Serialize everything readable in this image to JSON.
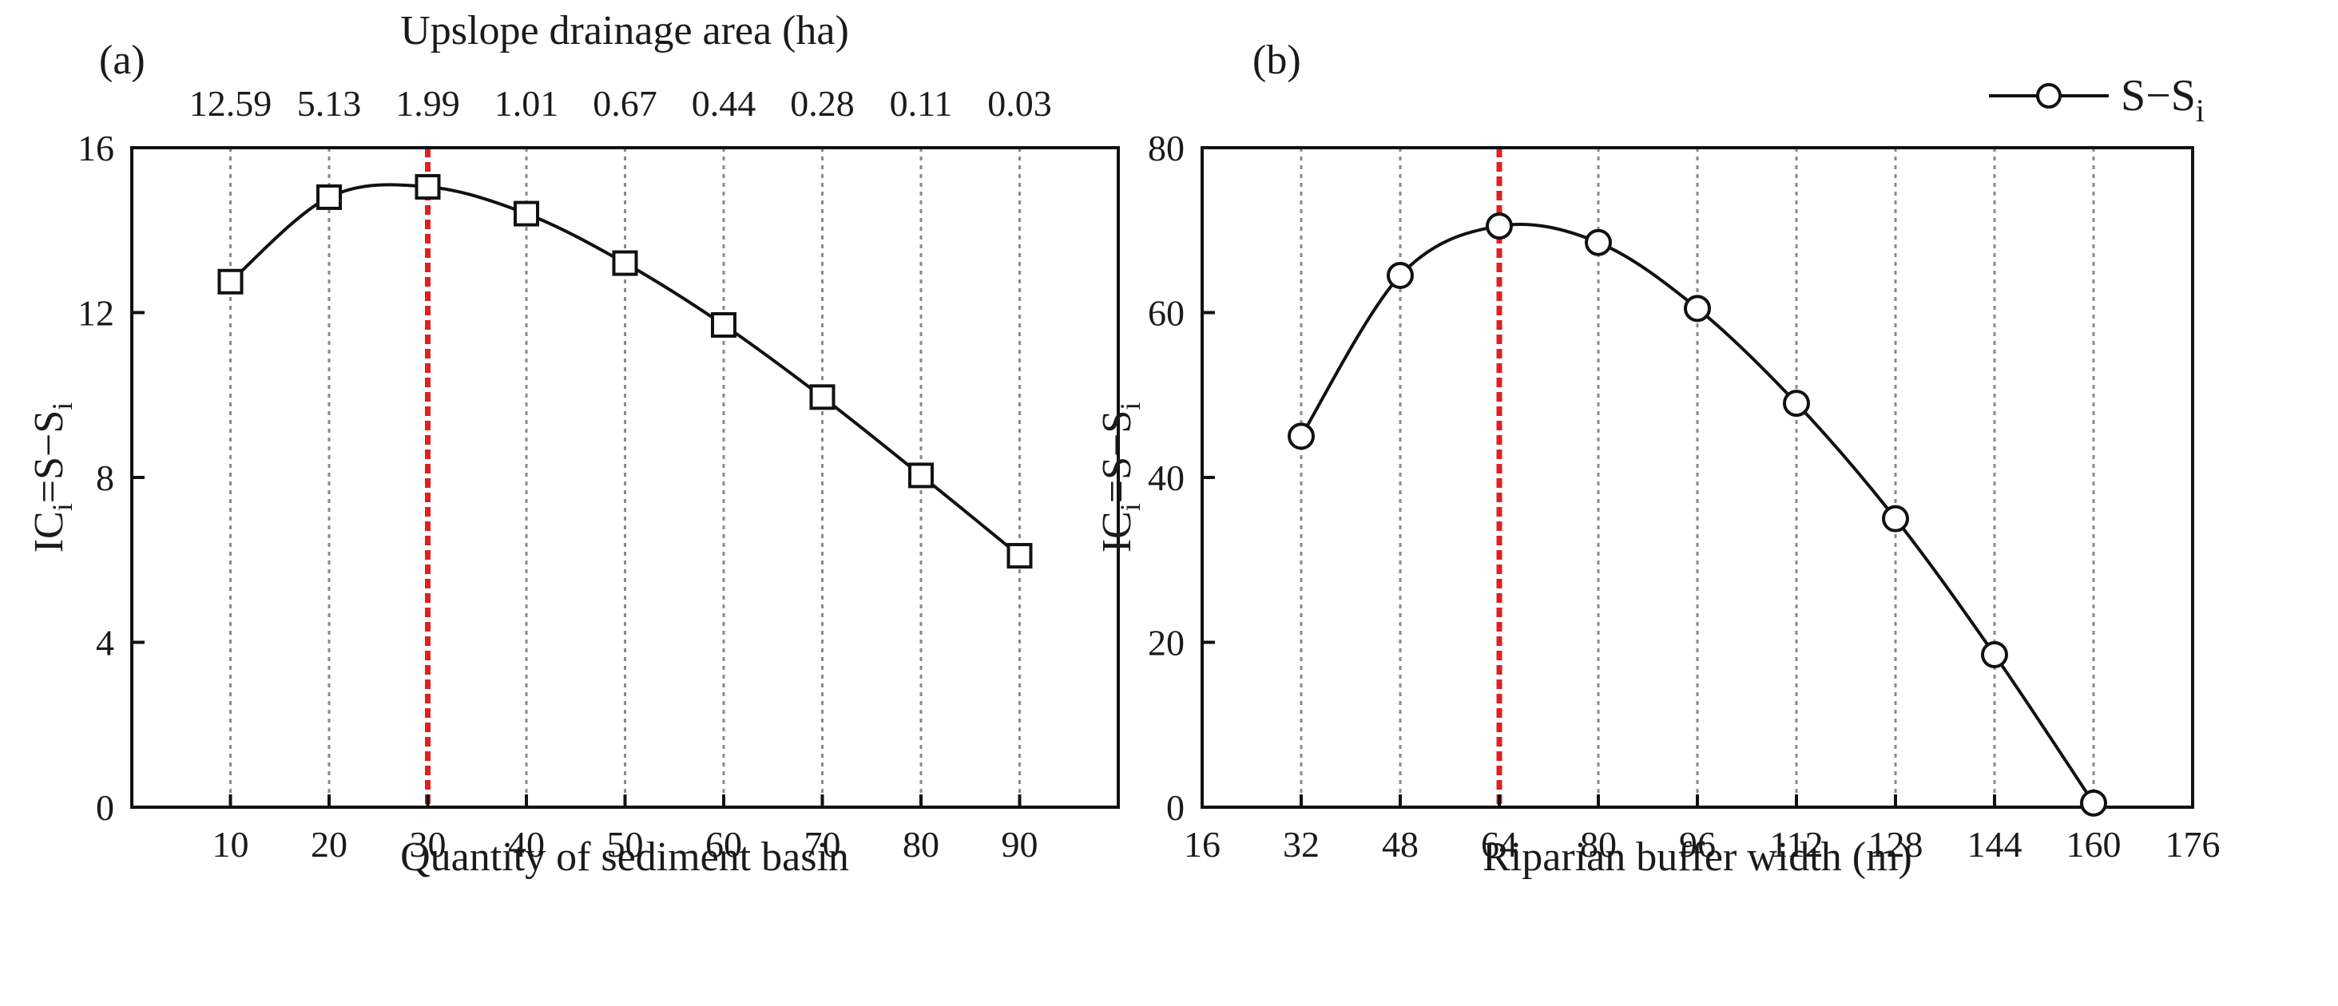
{
  "chart_data": [
    {
      "panel_label": "(a)",
      "type": "line",
      "xlabel": "Quantity of sediment basin",
      "ylabel": {
        "main": "IC",
        "sub1": "i",
        "eq": "=S−S",
        "sub2": "i"
      },
      "top_xlabel": "Upslope drainage area (ha)",
      "x": [
        10,
        20,
        30,
        40,
        50,
        60,
        70,
        80,
        90
      ],
      "values": [
        12.75,
        14.8,
        15.05,
        14.4,
        13.2,
        11.7,
        9.95,
        8.05,
        6.1
      ],
      "x_ticks": [
        "10",
        "20",
        "30",
        "40",
        "50",
        "60",
        "70",
        "80",
        "90"
      ],
      "top_ticks": [
        "12.59",
        "5.13",
        "1.99",
        "1.01",
        "0.67",
        "0.44",
        "0.28",
        "0.11",
        "0.03"
      ],
      "y_ticks": [
        "0",
        "4",
        "8",
        "12",
        "16"
      ],
      "xlim": [
        0,
        100
      ],
      "ylim": [
        0,
        16
      ],
      "optimum_x": 30,
      "marker": "square"
    },
    {
      "panel_label": "(b)",
      "type": "line",
      "xlabel": "Riparian buffer width (m)",
      "ylabel": {
        "main": "IC",
        "sub1": "i",
        "eq": "=S−S",
        "sub2": "i"
      },
      "x": [
        32,
        48,
        64,
        80,
        96,
        112,
        128,
        144,
        160
      ],
      "values": [
        45,
        64.5,
        70.5,
        68.5,
        60.5,
        49,
        35,
        18.5,
        0.5
      ],
      "x_ticks": [
        "16",
        "32",
        "48",
        "64",
        "80",
        "96",
        "112",
        "128",
        "144",
        "160",
        "176"
      ],
      "y_ticks": [
        "0",
        "20",
        "40",
        "60",
        "80"
      ],
      "xlim": [
        16,
        176
      ],
      "ylim": [
        0,
        80
      ],
      "optimum_x": 64,
      "marker": "circle",
      "legend": {
        "main": "S−S",
        "sub": "i"
      }
    }
  ]
}
